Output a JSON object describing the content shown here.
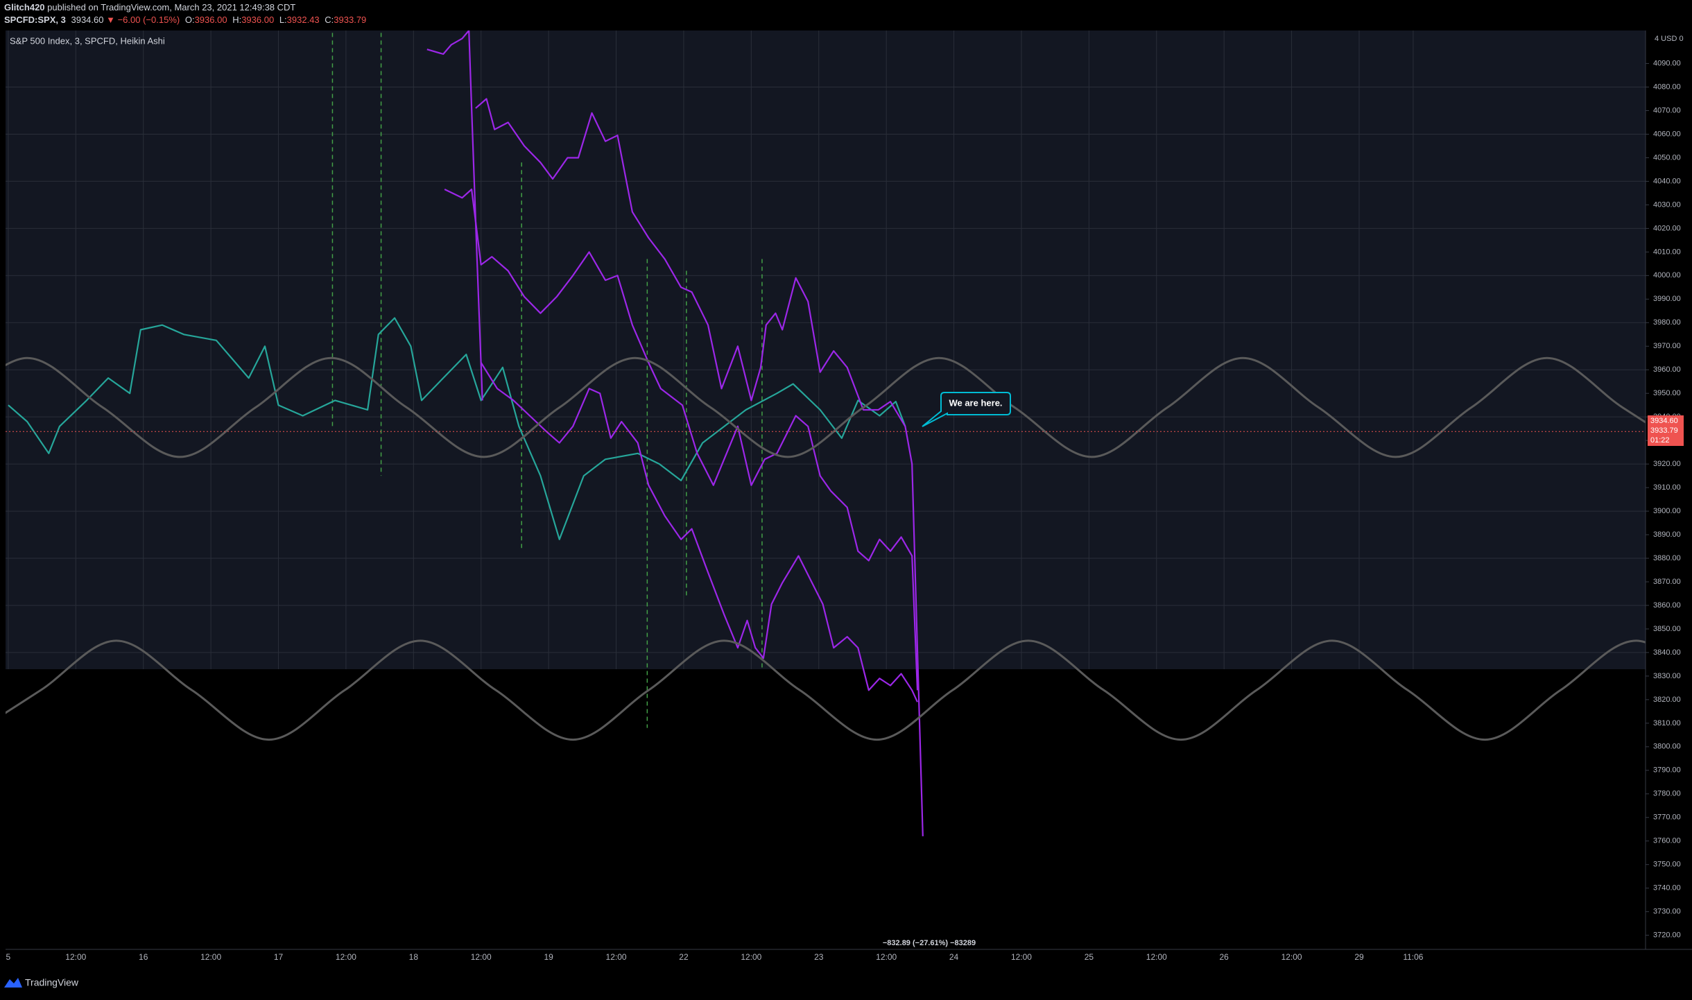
{
  "header": {
    "author": "Glitch420",
    "published": "published on TradingView.com, March 23, 2021 12:49:38 CDT",
    "ticker": "SPCFD:SPX, 3",
    "last": "3934.60",
    "change": "▼ −6.00 (−0.15%)",
    "ohlc": [
      {
        "label": "O:",
        "value": "3936.00"
      },
      {
        "label": "H:",
        "value": "3936.00"
      },
      {
        "label": "L:",
        "value": "3932.43"
      },
      {
        "label": "C:",
        "value": "3933.79"
      }
    ]
  },
  "chart_data": {
    "type": "line",
    "title": "S&P 500 Index, 3, SPCFD, Heikin Ashi",
    "axis_unit": "4 USD 0",
    "xlim": [
      -0.02,
      12.12
    ],
    "ylim": [
      3714,
      4104
    ],
    "grid": true,
    "xticks": [
      {
        "value": 0,
        "label": "5"
      },
      {
        "value": 0.5,
        "label": "12:00"
      },
      {
        "value": 1,
        "label": "16"
      },
      {
        "value": 1.5,
        "label": "12:00"
      },
      {
        "value": 2,
        "label": "17"
      },
      {
        "value": 2.5,
        "label": "12:00"
      },
      {
        "value": 3,
        "label": "18"
      },
      {
        "value": 3.5,
        "label": "12:00"
      },
      {
        "value": 4,
        "label": "19"
      },
      {
        "value": 4.5,
        "label": "12:00"
      },
      {
        "value": 5,
        "label": "22"
      },
      {
        "value": 5.5,
        "label": "12:00"
      },
      {
        "value": 6,
        "label": "23"
      },
      {
        "value": 6.5,
        "label": "12:00"
      },
      {
        "value": 7,
        "label": "24"
      },
      {
        "value": 7.5,
        "label": "12:00"
      },
      {
        "value": 8,
        "label": "25"
      },
      {
        "value": 8.5,
        "label": "12:00"
      },
      {
        "value": 9,
        "label": "26"
      },
      {
        "value": 9.5,
        "label": "12:00"
      },
      {
        "value": 10,
        "label": "29"
      },
      {
        "value": 10.4,
        "label": "11:06"
      }
    ],
    "yticks": [
      {
        "value": 3720,
        "label": "3720.00"
      },
      {
        "value": 3730,
        "label": "3730.00"
      },
      {
        "value": 3740,
        "label": "3740.00"
      },
      {
        "value": 3750,
        "label": "3750.00"
      },
      {
        "value": 3760,
        "label": "3760.00"
      },
      {
        "value": 3770,
        "label": "3770.00"
      },
      {
        "value": 3780,
        "label": "3780.00"
      },
      {
        "value": 3790,
        "label": "3790.00"
      },
      {
        "value": 3800,
        "label": "3800.00"
      },
      {
        "value": 3810,
        "label": "3810.00"
      },
      {
        "value": 3820,
        "label": "3820.00"
      },
      {
        "value": 3830,
        "label": "3830.00"
      },
      {
        "value": 3840,
        "label": "3840.00"
      },
      {
        "value": 3850,
        "label": "3850.00"
      },
      {
        "value": 3860,
        "label": "3860.00"
      },
      {
        "value": 3870,
        "label": "3870.00"
      },
      {
        "value": 3880,
        "label": "3880.00"
      },
      {
        "value": 3890,
        "label": "3890.00"
      },
      {
        "value": 3900,
        "label": "3900.00"
      },
      {
        "value": 3910,
        "label": "3910.00"
      },
      {
        "value": 3920,
        "label": "3920.00"
      },
      {
        "value": 3930,
        "label": "3930.00"
      },
      {
        "value": 3940,
        "label": "3940.00"
      },
      {
        "value": 3950,
        "label": "3950.00"
      },
      {
        "value": 3960,
        "label": "3960.00"
      },
      {
        "value": 3970,
        "label": "3970.00"
      },
      {
        "value": 3980,
        "label": "3980.00"
      },
      {
        "value": 3990,
        "label": "3990.00"
      },
      {
        "value": 4000,
        "label": "4000.00"
      },
      {
        "value": 4010,
        "label": "4010.00"
      },
      {
        "value": 4020,
        "label": "4020.00"
      },
      {
        "value": 4030,
        "label": "4030.00"
      },
      {
        "value": 4040,
        "label": "4040.00"
      },
      {
        "value": 4050,
        "label": "4050.00"
      },
      {
        "value": 4060,
        "label": "4060.00"
      },
      {
        "value": 4070,
        "label": "4070.00"
      },
      {
        "value": 4080,
        "label": "4080.00"
      },
      {
        "value": 4090,
        "label": "4090.00"
      }
    ],
    "series": [
      {
        "color": "#26a69a",
        "x": [
          0,
          0.14,
          0.3,
          0.38,
          0.58,
          0.74,
          0.9,
          0.98,
          1.14,
          1.3,
          1.54,
          1.78,
          1.9,
          2.0,
          2.18,
          2.42,
          2.66,
          2.74,
          2.86,
          2.98,
          3.06,
          3.22,
          3.39,
          3.5,
          3.66,
          3.78,
          3.94,
          4.08,
          4.26,
          4.42,
          4.66,
          4.82,
          4.98,
          5.14,
          5.46,
          5.69,
          5.81,
          6.01,
          6.17,
          6.29,
          6.45,
          6.57,
          6.64
        ],
        "values": [
          3945,
          3938,
          3924.5,
          3936,
          3947,
          3956.5,
          3950,
          3977,
          3979,
          3975,
          3972.5,
          3956.5,
          3970,
          3945,
          3940.5,
          3947,
          3943,
          3975,
          3982,
          3970,
          3947,
          3956.5,
          3966.5,
          3947,
          3961,
          3936,
          3915,
          3888,
          3915,
          3922,
          3924.5,
          3920,
          3913,
          3929,
          3943,
          3950,
          3954,
          3943,
          3931,
          3947,
          3940.5,
          3946.5,
          3936
        ]
      },
      {
        "color": "#9c27e8",
        "x": [
          3.1,
          3.22,
          3.28,
          3.36,
          3.41,
          3.43,
          3.47,
          3.51
        ],
        "values": [
          4096,
          4094,
          4098,
          4100.6,
          4104,
          4071,
          4007,
          3947
        ]
      },
      {
        "color": "#9c27e8",
        "x": [
          3.46,
          3.54,
          3.6,
          3.7,
          3.82,
          3.94,
          4.03,
          4.14,
          4.22,
          4.32,
          4.42,
          4.51,
          4.62,
          4.74,
          4.86,
          4.98,
          5.06,
          5.18,
          5.28,
          5.4,
          5.5,
          5.57,
          5.61,
          5.68,
          5.73,
          5.83,
          5.92,
          6.01,
          6.11,
          6.21,
          6.33,
          6.44,
          6.53,
          6.64,
          6.69,
          6.77
        ],
        "values": [
          4071,
          4075,
          4062,
          4065,
          4055,
          4048,
          4041,
          4050,
          4050,
          4069,
          4057,
          4059.5,
          4027,
          4016,
          4007,
          3995,
          3993,
          3979,
          3952,
          3970,
          3947,
          3961,
          3979,
          3984,
          3977,
          3999,
          3989,
          3959,
          3968,
          3961,
          3943,
          3943,
          3946.5,
          3936,
          3920,
          3762
        ]
      },
      {
        "color": "#9c27e8",
        "x": [
          3.23,
          3.36,
          3.43,
          3.5,
          3.58,
          3.7,
          3.82,
          3.94,
          4.06,
          4.18,
          4.3,
          4.42,
          4.51,
          4.62,
          4.74,
          4.83,
          4.99,
          5.1,
          5.22,
          5.4,
          5.5,
          5.6,
          5.69,
          5.83,
          5.92,
          6.01,
          6.09,
          6.21,
          6.29,
          6.37,
          6.45,
          6.53,
          6.61,
          6.69,
          6.73
        ],
        "values": [
          4036.6,
          4033,
          4036.6,
          4004.6,
          4008,
          4002,
          3991,
          3984,
          3991,
          4000,
          4010,
          3998,
          4000,
          3979,
          3963,
          3952,
          3945,
          3924.5,
          3911,
          3936,
          3911,
          3922,
          3924.5,
          3940.5,
          3936,
          3915,
          3908.5,
          3901.6,
          3883,
          3879,
          3888,
          3883,
          3889,
          3881,
          3824
        ]
      },
      {
        "color": "#9c27e8",
        "x": [
          3.5,
          3.62,
          3.74,
          3.86,
          3.98,
          4.08,
          4.18,
          4.3,
          4.38,
          4.46,
          4.54,
          4.66,
          4.74,
          4.86,
          4.98,
          5.06,
          5.18,
          5.3,
          5.4,
          5.47,
          5.53,
          5.59,
          5.65,
          5.73,
          5.85,
          5.95,
          6.03,
          6.11,
          6.21,
          6.29,
          6.37,
          6.45,
          6.53,
          6.61,
          6.69,
          6.73
        ],
        "values": [
          3963,
          3952,
          3947,
          3940.5,
          3934,
          3929,
          3936,
          3952,
          3950,
          3931,
          3938,
          3929,
          3911,
          3898,
          3888,
          3892.5,
          3874,
          3856,
          3842,
          3853.6,
          3842,
          3837.6,
          3860.5,
          3869.6,
          3881,
          3869.6,
          3860.5,
          3842,
          3846.7,
          3842,
          3824,
          3829,
          3826,
          3831,
          3824,
          3819
        ]
      },
      {
        "color": "#5a5a5a",
        "smooth": true,
        "x": [
          -0.42,
          0.14,
          0.7,
          1.27,
          1.83,
          2.39,
          2.95,
          3.52,
          4.08,
          4.64,
          5.2,
          5.77,
          6.33,
          6.89,
          7.45,
          8.02,
          8.58,
          9.14,
          9.7,
          10.27,
          10.83,
          11.39,
          11.95,
          12.52
        ],
        "values": [
          3944,
          3965,
          3944,
          3923,
          3944,
          3965,
          3944,
          3923,
          3944,
          3965,
          3944,
          3923,
          3944,
          3965,
          3944,
          3923,
          3944,
          3965,
          3944,
          3923,
          3944,
          3965,
          3944,
          3923
        ]
      },
      {
        "color": "#5a5a5a",
        "smooth": true,
        "x": [
          -0.33,
          0.24,
          0.8,
          1.36,
          1.93,
          2.49,
          3.05,
          3.61,
          4.18,
          4.74,
          5.3,
          5.86,
          6.43,
          6.99,
          7.55,
          8.11,
          8.68,
          9.24,
          9.8,
          10.36,
          10.93,
          11.49,
          12.05,
          12.61
        ],
        "values": [
          3803,
          3824,
          3845,
          3824,
          3803,
          3824,
          3845,
          3824,
          3803,
          3824,
          3845,
          3824,
          3803,
          3824,
          3845,
          3824,
          3803,
          3824,
          3845,
          3824,
          3803,
          3824,
          3845,
          3824
        ]
      }
    ],
    "vlines": [
      {
        "x": 2.4,
        "y": [
          4103,
          3936
        ],
        "color": "#43a047"
      },
      {
        "x": 2.76,
        "y": [
          4103,
          3915
        ],
        "color": "#43a047"
      },
      {
        "x": 3.8,
        "y": [
          4048,
          3883
        ],
        "color": "#43a047"
      },
      {
        "x": 4.73,
        "y": [
          4007,
          3808
        ],
        "color": "#43a047"
      },
      {
        "x": 5.02,
        "y": [
          4002,
          3863
        ],
        "color": "#43a047"
      },
      {
        "x": 5.58,
        "y": [
          4007,
          3833
        ],
        "color": "#43a047"
      }
    ],
    "price_line": 3933.79,
    "price_badge": [
      "3934.60",
      "01:22"
    ],
    "annotation": "We are here.",
    "measure": "−832.89 (−27.61%) −83289"
  },
  "footer": {
    "brand": "TradingView"
  }
}
